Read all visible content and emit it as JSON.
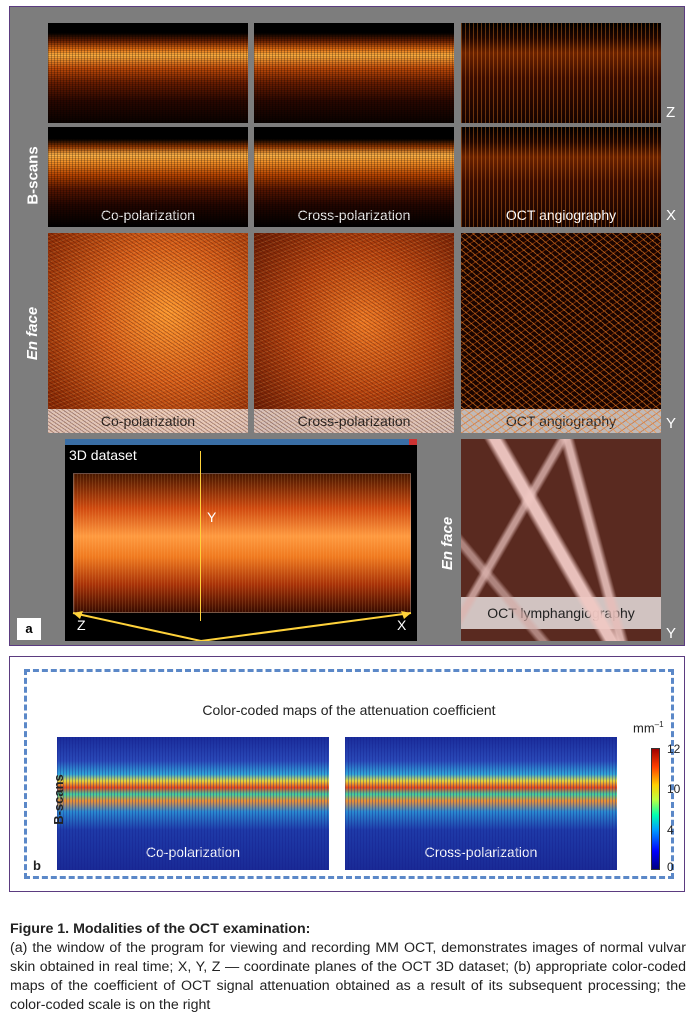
{
  "panel_a": {
    "label": "a",
    "side_labels": {
      "bscans": "B-scans",
      "enface": "En face",
      "enface_lymph": "En face"
    },
    "axis_letters": {
      "z": "Z",
      "x": "X",
      "y": "Y",
      "y2": "Y"
    },
    "bscan_captions": [
      "Co-polarization",
      "Cross-polarization",
      "OCT angiography"
    ],
    "enface_captions": [
      "Co-polarization",
      "Cross-polarization",
      "OCT angiography"
    ],
    "viewer": {
      "title": "3D dataset",
      "axis_y": "Y",
      "axis_z": "Z",
      "axis_x": "X"
    },
    "lymph_caption": "OCT lymphangiography"
  },
  "panel_b": {
    "label": "b",
    "title": "Color-coded maps of the attenuation coefficient",
    "side_label": "B-scans",
    "map_captions": [
      "Co-polarization",
      "Cross-polarization"
    ],
    "scale": {
      "unit": "mm",
      "unit_exp": "–1",
      "ticks": [
        "12",
        "10",
        "4",
        "0"
      ]
    }
  },
  "caption": {
    "title": "Figure 1. Modalities of the OCT examination:",
    "body": "(a) the window of the program for viewing and recording MM OCT, demonstrates images of normal vulvar skin obtained in real time; X, Y, Z — coordinate planes of the OCT 3D dataset; (b) appropriate color-coded maps of the coefficient of OCT signal attenuation obtained as a result of its subsequent processing; the color-coded scale is on the right"
  }
}
